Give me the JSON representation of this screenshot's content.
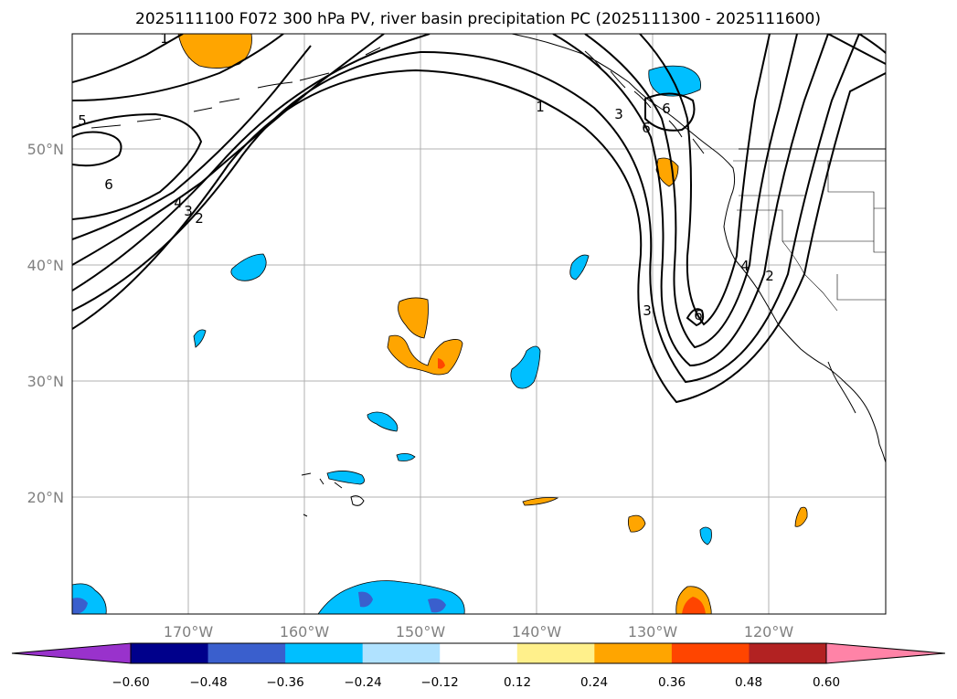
{
  "title": "2025111100 F072 300 hPa PV, river basin precipitation PC (2025111300 - 2025111600)",
  "map": {
    "lat_ticks": [
      "50°N",
      "40°N",
      "30°N",
      "20°N"
    ],
    "lon_ticks": [
      "170°W",
      "160°W",
      "150°W",
      "140°W",
      "130°W",
      "120°W"
    ],
    "contour_labels": [
      "1",
      "5",
      "6",
      "4",
      "3",
      "2",
      "1",
      "3",
      "6",
      "6",
      "3",
      "6",
      "4",
      "2"
    ]
  },
  "colorbar": {
    "ticks": [
      "−0.60",
      "−0.48",
      "−0.36",
      "−0.24",
      "−0.12",
      "0.12",
      "0.24",
      "0.36",
      "0.48",
      "0.60"
    ],
    "colors": [
      "#9932cc",
      "#00008b",
      "#3a5fcd",
      "#00bfff",
      "#b0e2ff",
      "#ffffff",
      "#fff08b",
      "#ffa500",
      "#ff4500",
      "#b22222",
      "#ff83a7"
    ],
    "under_color": "#9932cc",
    "over_color": "#ff83a7"
  }
}
